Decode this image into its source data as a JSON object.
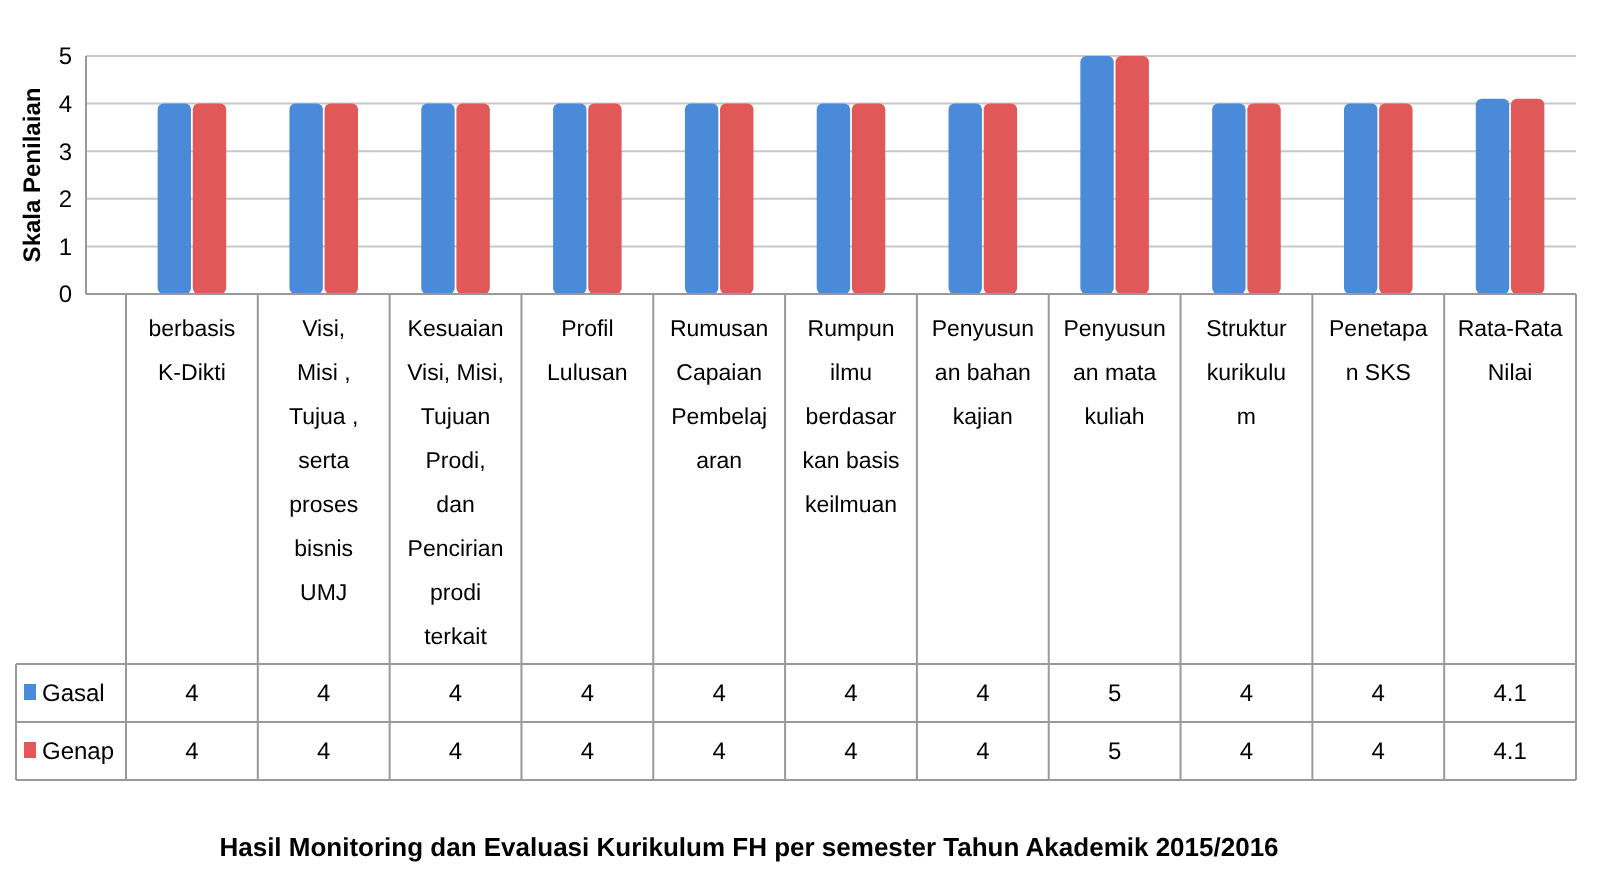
{
  "chart_data": {
    "type": "bar",
    "title": "Hasil Monitoring dan Evaluasi Kurikulum FH per semester Tahun Akademik 2015/2016",
    "ylabel": "Skala Penilaian",
    "categories": [
      "berbasis\nK-Dikti",
      "Visi,\nMisi ,\nTujua ,\nserta\nproses\nbisnis\nUMJ",
      "Kesuaian\nVisi, Misi,\nTujuan\nProdi,\ndan\nPencirian\nprodi\nterkait",
      "Profil\nLulusan",
      "Rumusan\nCapaian\nPembelaj\naran",
      "Rumpun\nilmu\nberdasar\nkan basis\nkeilmuan",
      "Penyusun\nan bahan\nkajian",
      "Penyusun\nan mata\nkuliah",
      "Struktur\nkurikulu\nm",
      "Penetapa\nn SKS",
      "Rata-Rata\nNilai"
    ],
    "series": [
      {
        "name": "Gasal",
        "color": "#4a8ad8",
        "values": [
          4,
          4,
          4,
          4,
          4,
          4,
          4,
          5,
          4,
          4,
          4.1
        ]
      },
      {
        "name": "Genap",
        "color": "#e05858",
        "values": [
          4,
          4,
          4,
          4,
          4,
          4,
          4,
          5,
          4,
          4,
          4.1
        ]
      }
    ],
    "ylim": [
      0,
      5
    ],
    "yticks": [
      0,
      1,
      2,
      3,
      4,
      5
    ],
    "grid": "y",
    "legend": "bottom left",
    "data_labels": true
  }
}
